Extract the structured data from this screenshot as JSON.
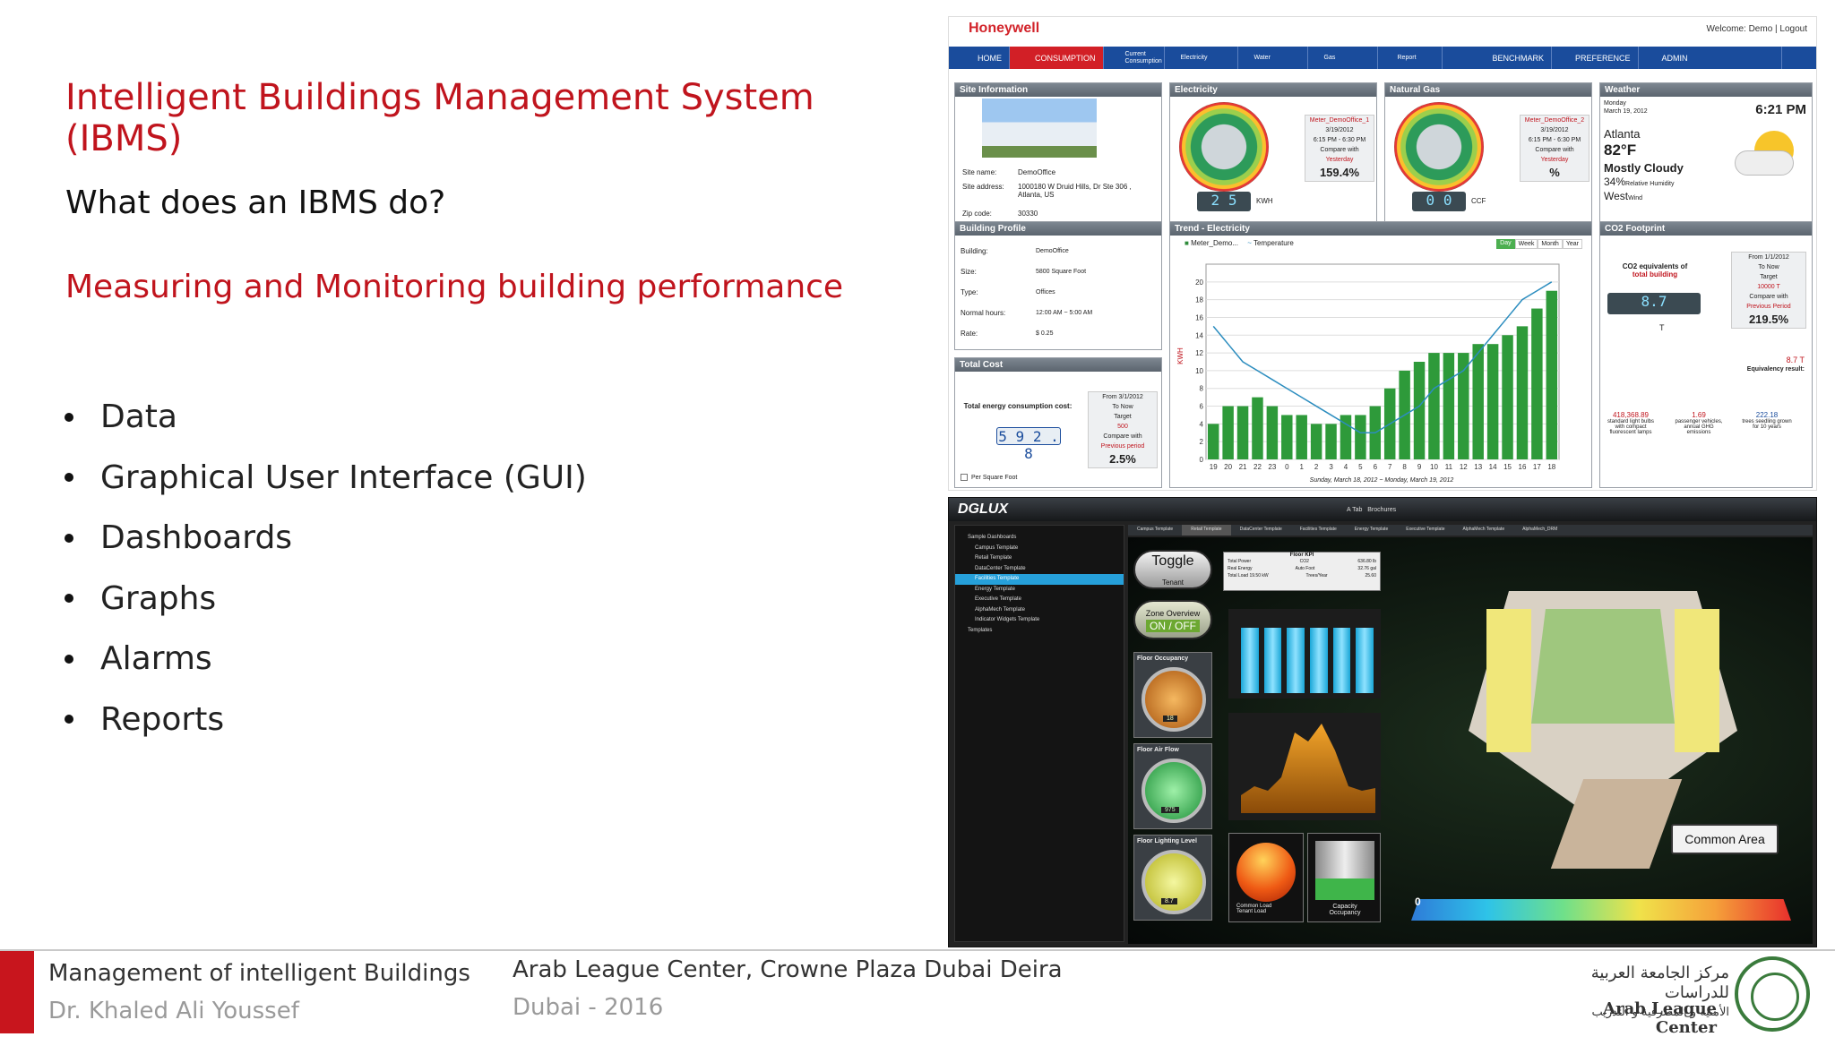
{
  "slide": {
    "title": "Intelligent Buildings Management System (IBMS)",
    "question": "What does an IBMS do?",
    "subtitle": "Measuring and Monitoring building performance",
    "bullets": [
      "Data",
      "Graphical User Interface (GUI)",
      "Dashboards",
      "Graphs",
      "Alarms",
      "Reports"
    ]
  },
  "footer": {
    "course": "Management of intelligent Buildings",
    "author": "Dr. Khaled Ali Youssef",
    "venue": "Arab League Center, Crowne Plaza Dubai Deira",
    "place_year": "Dubai - 2016",
    "logo_arabic_line1": "مركز الجامعة العربية للدراسات",
    "logo_arabic_line2": "الأمنية و المصرفية و التدريب",
    "logo_english": "Arab League Center"
  },
  "honeywell": {
    "brand": "Honeywell",
    "welcome": "Welcome: Demo | Logout",
    "nav": [
      "HOME",
      "CONSUMPTION",
      "Current Consumption",
      "Electricity",
      "Water",
      "Gas",
      "Report",
      "BENCHMARK",
      "PREFERENCE",
      "ADMIN"
    ],
    "site_info": {
      "title": "Site Information",
      "name_label": "Site name:",
      "name": "DemoOffice",
      "address_label": "Site address:",
      "address": "1000180 W Druid Hills, Dr Ste 306 , Atlanta, US",
      "zip_label": "Zip code:",
      "zip": "30330"
    },
    "electricity": {
      "title": "Electricity",
      "meter": "Meter_DemoOffice_1",
      "date": "3/19/2012",
      "time": "6:15 PM - 6:30 PM",
      "compare": "Compare with",
      "yesterday": "Yesterday",
      "pct": "159.4%",
      "reading": "2 5",
      "unit": "KWH"
    },
    "gas": {
      "title": "Natural Gas",
      "meter": "Meter_DemoOffice_2",
      "date": "3/19/2012",
      "time": "6:15 PM - 6:30 PM",
      "compare": "Compare with",
      "yesterday": "Yesterday",
      "pct": "%",
      "reading": "0 0",
      "unit": "CCF"
    },
    "weather": {
      "title": "Weather",
      "day": "Monday",
      "date": "March 19, 2012",
      "time": "6:21 PM",
      "city": "Atlanta",
      "temp": "82°F",
      "cond": "Mostly Cloudy",
      "humidity": "34%",
      "humidity_label": "Relative Humidity",
      "wind": "West",
      "wind_label": "Wind"
    },
    "building": {
      "title": "Building Profile",
      "rows": [
        [
          "Building:",
          "DemoOffice"
        ],
        [
          "Size:",
          "5800  Square Foot"
        ],
        [
          "Type:",
          "Offices"
        ],
        [
          "Normal hours:",
          "12:00 AM  ~  5:00 AM"
        ],
        [
          "Rate:",
          "$ 0.25"
        ]
      ]
    },
    "trend": {
      "title": "Trend - Electricity",
      "legend1": "Meter_Demo...",
      "legend2": "Temperature",
      "tabs": [
        "Day",
        "Week",
        "Month",
        "Year"
      ],
      "ylabel": "KWH",
      "xcaption": "Sunday, March 18, 2012 ~ Monday, March 19, 2012"
    },
    "co2": {
      "title": "CO2 Footprint",
      "label1": "CO2 equivalents of",
      "label2": "total building",
      "reading": "8.7",
      "unit": "T",
      "from": "From  1/1/2012",
      "to": "To     Now",
      "target_label": "Target",
      "target": "10000 T",
      "compare": "Compare with",
      "period": "Previous Period",
      "pct": "219.5%",
      "equiv": "8.7 T",
      "equiv_label": "Equivalency result:",
      "items": [
        [
          "418,368.89",
          "standard light bulbs with compact fluorescent lamps"
        ],
        [
          "1.69",
          "passenger vehicles, annual GHG emissions"
        ],
        [
          "222.18",
          "trees seedling grown for 10 years"
        ]
      ]
    },
    "cost": {
      "title": "Total Cost",
      "label": "Total energy consumption cost:",
      "reading": "5 9 2 . 8",
      "from": "From  3/1/2012",
      "to": "To     Now",
      "target_label": "Target",
      "target": "500",
      "compare": "Compare with",
      "period": "Previous period",
      "pct": "2.5%",
      "checkbox": "Per Square Foot"
    }
  },
  "dglux": {
    "logo": "DGLUX",
    "top_tabs": [
      "A Tab",
      "Brochures"
    ],
    "tree": [
      "Sample Dashboards",
      "Campus Template",
      "Retail Template",
      "DataCenter Template",
      "Facilities Template",
      "Energy Template",
      "Executive Template",
      "AlphaMech Template",
      "Indicator Widgets Template",
      "Templates"
    ],
    "tabs": [
      "Campus Template",
      "Retail Template",
      "DataCenter Template",
      "Facilities Template",
      "Energy Template",
      "Executive Template",
      "AlphaMech Template",
      "AlphaMech_DRM"
    ],
    "toggle": "Toggle",
    "tenant": "Tenant",
    "zone": "Zone Overview",
    "on_off": "ON / OFF",
    "floor_occupancy": "Floor Occupancy",
    "occupancy_value": "18",
    "floor_air": "Floor Air Flow",
    "air_value": "975",
    "floor_light": "Floor Lighting Level",
    "light_value": "8.7",
    "kpi_title": "Floor KPI",
    "kpi": [
      [
        "Total Power",
        "CO2",
        "636.80 lb"
      ],
      [
        "Real Energy",
        "Auto Foot",
        "32.76 gal"
      ],
      [
        "Total Load  19.50 kW",
        "Trees/Year",
        "25.60"
      ]
    ],
    "common_load": "Common Load",
    "tenant_load": "Tenant Load",
    "capacity": "Capacity",
    "occupancy": "Occupancy",
    "common_area": "Common Area",
    "scale_zero": "0"
  },
  "trend_chart_data": {
    "type": "bar",
    "categories": [
      "19",
      "20",
      "21",
      "22",
      "23",
      "0",
      "1",
      "2",
      "3",
      "4",
      "5",
      "6",
      "7",
      "8",
      "9",
      "10",
      "11",
      "12",
      "13",
      "14",
      "15",
      "16",
      "17",
      "18"
    ],
    "series": [
      {
        "values": [
          4,
          6,
          6,
          7,
          6,
          5,
          5,
          4,
          4,
          5,
          5,
          6,
          8,
          10,
          11,
          12,
          12,
          12,
          13,
          13,
          14,
          15,
          17,
          19
        ]
      }
    ],
    "ylim": [
      0,
      22
    ]
  }
}
